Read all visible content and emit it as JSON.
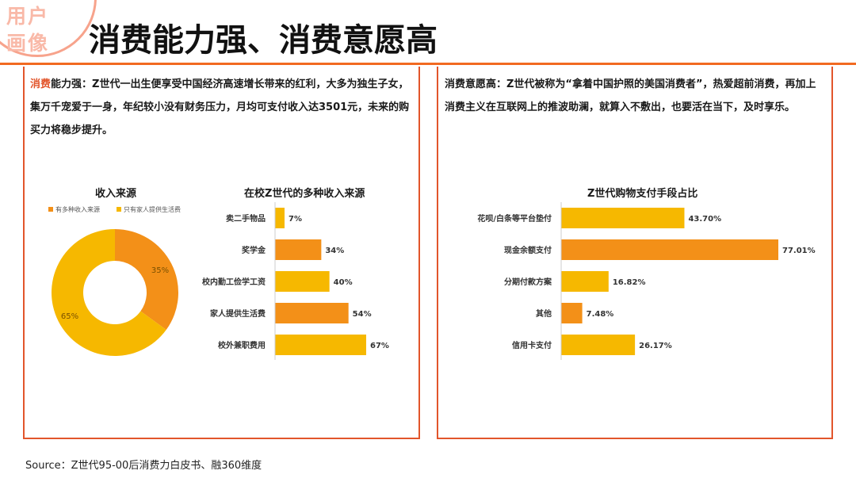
{
  "corner_badge": "用户\n画像",
  "title": "消费能力强、消费意愿高",
  "left_panel": {
    "lead_label": "消费",
    "lead_rest": "能力强：Z世代一出生便享受中国经济高速增长带来的红利，大多为独生子女，集万千宠爱于一身，年纪较小没有财务压力，月均可支付收入达3501元，未来的购买力将稳步提升。"
  },
  "right_panel": {
    "text": "消费意愿高：Z世代被称为“拿着中国护照的美国消费者”，热爱超前消费，再加上消费主义在互联网上的推波助澜，就算入不敷出，也要活在当下，及时享乐。"
  },
  "colors": {
    "accent": "#e2552b",
    "orange": "#f39018",
    "yellow": "#f6b800"
  },
  "chart_data": [
    {
      "type": "pie",
      "title": "收入来源",
      "legend": [
        "有多种收入来源",
        "只有家人提供生活费"
      ],
      "values": [
        35,
        65
      ],
      "labels": [
        "35%",
        "65%"
      ],
      "colors": [
        "#f39018",
        "#f6b800"
      ]
    },
    {
      "type": "bar",
      "orientation": "horizontal",
      "title": "在校Z世代的多种收入来源",
      "categories": [
        "卖二手物品",
        "奖学金",
        "校内勤工俭学工资",
        "家人提供生活费",
        "校外兼职费用"
      ],
      "values": [
        7,
        34,
        40,
        54,
        67
      ],
      "labels": [
        "7%",
        "34%",
        "40%",
        "54%",
        "67%"
      ],
      "colors": [
        "#f6b800",
        "#f39018",
        "#f6b800",
        "#f39018",
        "#f6b800"
      ]
    },
    {
      "type": "bar",
      "orientation": "horizontal",
      "title": "Z世代购物支付手段占比",
      "categories": [
        "花呗/白条等平台垫付",
        "现金余额支付",
        "分期付款方案",
        "其他",
        "信用卡支付"
      ],
      "values": [
        43.7,
        77.01,
        16.82,
        7.48,
        26.17
      ],
      "labels": [
        "43.70%",
        "77.01%",
        "16.82%",
        "7.48%",
        "26.17%"
      ],
      "colors": [
        "#f6b800",
        "#f39018",
        "#f6b800",
        "#f39018",
        "#f6b800"
      ]
    }
  ],
  "source": "Source：Z世代95-00后消费力白皮书、融360维度"
}
